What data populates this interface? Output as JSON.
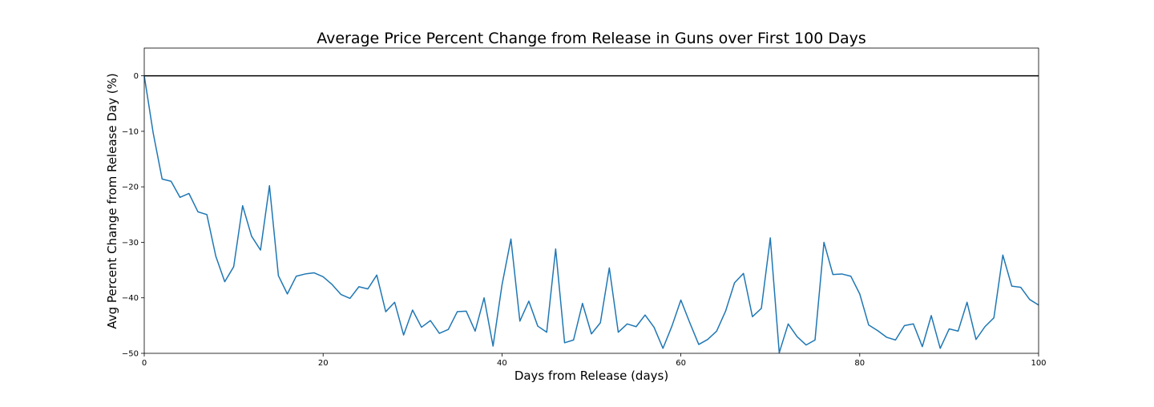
{
  "chart_data": {
    "type": "line",
    "title": "Average Price Percent Change from Release in Guns over First 100 Days",
    "xlabel": "Days from Release (days)",
    "ylabel": "Avg Percent Change from Release Day (%)",
    "xlim": [
      0,
      100
    ],
    "ylim": [
      -50,
      5
    ],
    "xticks": [
      0,
      20,
      40,
      60,
      80,
      100
    ],
    "yticks": [
      0,
      -10,
      -20,
      -30,
      -40,
      -50
    ],
    "grid": false,
    "legend": "none",
    "reference_line": {
      "y": 0,
      "color": "#000000"
    },
    "series": [
      {
        "color": "#1f77b4",
        "x": [
          0,
          1,
          2,
          3,
          4,
          5,
          6,
          7,
          8,
          9,
          10,
          11,
          12,
          13,
          14,
          15,
          16,
          17,
          18,
          19,
          20,
          21,
          22,
          23,
          24,
          25,
          26,
          27,
          28,
          29,
          30,
          31,
          32,
          33,
          34,
          35,
          36,
          37,
          38,
          39,
          40,
          41,
          42,
          43,
          44,
          45,
          46,
          47,
          48,
          49,
          50,
          51,
          52,
          53,
          54,
          55,
          56,
          57,
          58,
          59,
          60,
          61,
          62,
          63,
          64,
          65,
          66,
          67,
          68,
          69,
          70,
          71,
          72,
          73,
          74,
          75,
          76,
          77,
          78,
          79,
          80,
          81,
          82,
          83,
          84,
          85,
          86,
          87,
          88,
          89,
          90,
          91,
          92,
          93,
          94,
          95,
          96,
          97,
          98,
          99,
          100
        ],
        "y": [
          0,
          -10.3,
          -18.6,
          -19.0,
          -21.9,
          -21.2,
          -24.5,
          -25.0,
          -32.5,
          -37.1,
          -34.4,
          -23.4,
          -28.9,
          -31.4,
          -19.8,
          -36.0,
          -39.3,
          -36.1,
          -35.7,
          -35.5,
          -36.2,
          -37.6,
          -39.4,
          -40.1,
          -38.0,
          -38.4,
          -35.9,
          -42.5,
          -40.8,
          -46.7,
          -42.2,
          -45.3,
          -44.1,
          -46.4,
          -45.7,
          -42.5,
          -42.4,
          -46.0,
          -40.0,
          -48.7,
          -37.7,
          -29.4,
          -44.2,
          -40.6,
          -45.1,
          -46.2,
          -31.2,
          -48.1,
          -47.6,
          -41.0,
          -46.5,
          -44.5,
          -34.6,
          -46.2,
          -44.7,
          -45.2,
          -43.1,
          -45.3,
          -49.1,
          -45.1,
          -40.4,
          -44.5,
          -48.4,
          -47.5,
          -46.0,
          -42.4,
          -37.3,
          -35.6,
          -43.4,
          -41.9,
          -29.2,
          -49.9,
          -44.7,
          -47.0,
          -48.5,
          -47.6,
          -30.0,
          -35.8,
          -35.7,
          -36.1,
          -39.3,
          -44.9,
          -45.9,
          -47.1,
          -47.6,
          -45.0,
          -44.7,
          -48.8,
          -43.2,
          -49.1,
          -45.6,
          -46.0,
          -40.8,
          -47.5,
          -45.2,
          -43.6,
          -32.3,
          -37.9,
          -38.1,
          -40.3,
          -41.3
        ]
      }
    ]
  }
}
